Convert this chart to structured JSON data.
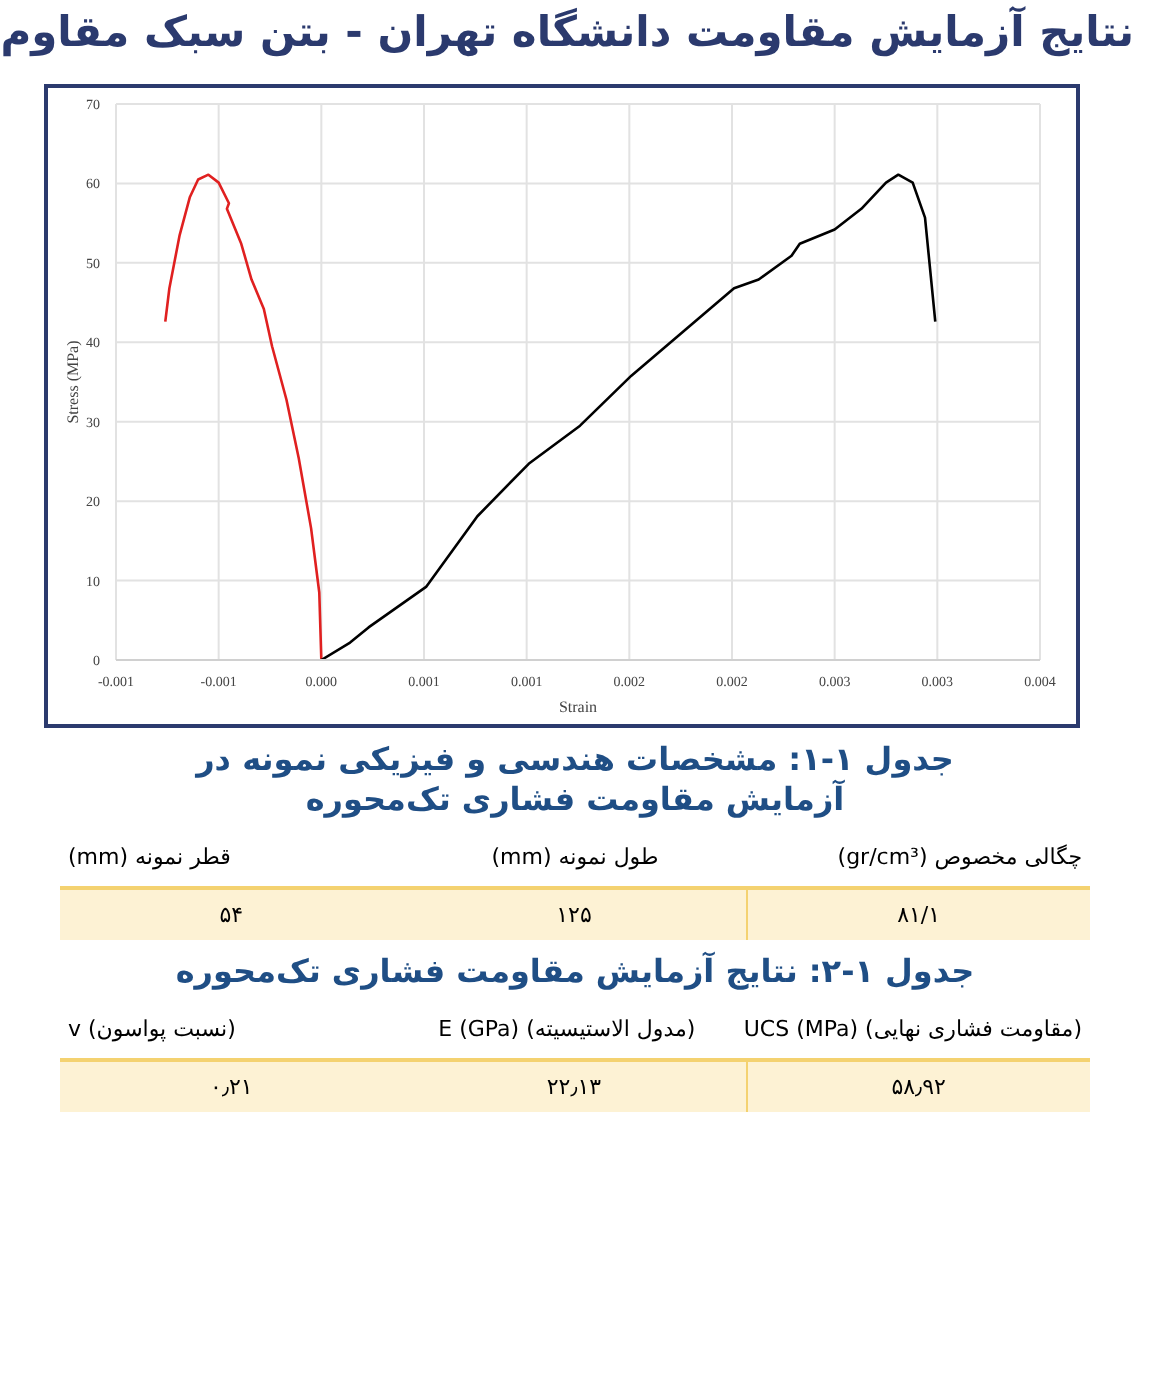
{
  "chart_data": {
    "type": "line",
    "title": "نتایج آزمایش مقاومت دانشگاه تهران - بتن سبک مقاوم",
    "xlabel": "Strain",
    "ylabel": "Stress (MPa)",
    "xlim": [
      -0.001,
      0.0035
    ],
    "xticks": [
      {
        "value": -0.001,
        "label": "-0.001"
      },
      {
        "value": -0.0005,
        "label": "-0.001"
      },
      {
        "value": 0,
        "label": "0.000"
      },
      {
        "value": 0.0005,
        "label": "0.001"
      },
      {
        "value": 0.001,
        "label": "0.001"
      },
      {
        "value": 0.0015,
        "label": "0.002"
      },
      {
        "value": 0.002,
        "label": "0.002"
      },
      {
        "value": 0.0025,
        "label": "0.003"
      },
      {
        "value": 0.003,
        "label": "0.003"
      },
      {
        "value": 0.0035,
        "label": "0.004"
      }
    ],
    "ylim": [
      0,
      70
    ],
    "yticks": [
      0,
      10,
      20,
      30,
      40,
      50,
      60,
      70
    ],
    "grid": true,
    "marker": "none",
    "line_style": "solid",
    "series": [
      {
        "color": "#e02020",
        "x": [
          -0.00076,
          -0.00074,
          -0.00069,
          -0.00064,
          -0.0006,
          -0.00055,
          -0.0005,
          -0.00045,
          -0.00046,
          -0.00039,
          -0.00034,
          -0.00028,
          -0.00024,
          -0.00017,
          -0.00011,
          -5e-05,
          -1e-05,
          0
        ],
        "values": [
          42.6,
          46.8,
          53.5,
          58.3,
          60.5,
          61.1,
          60.1,
          57.5,
          56.8,
          52.4,
          47.9,
          44.2,
          39.5,
          32.8,
          25.4,
          16.6,
          8.5,
          0
        ]
      },
      {
        "color": "#000000",
        "x": [
          0,
          0.00014,
          0.00023,
          0.00051,
          0.00076,
          0.00101,
          0.00126,
          0.00151,
          0.00176,
          0.00201,
          0.00213,
          0.00229,
          0.00233,
          0.0025,
          0.00263,
          0.00275,
          0.00281,
          0.00288,
          0.00294,
          0.00299
        ],
        "values": [
          0,
          2.2,
          4.1,
          9.2,
          18.1,
          24.7,
          29.5,
          35.8,
          41.3,
          46.8,
          47.9,
          50.9,
          52.4,
          54.2,
          56.8,
          60.1,
          61.1,
          60.1,
          55.7,
          42.6
        ]
      }
    ],
    "annotations": [
      "جدول ۱-۱: مشخصات هندسی و فیزیکی نمونه در آزمایش مقاومت فشاری تک‌محوره",
      "چگالی مخصوص (gr/cm³)",
      "طول نمونه (mm)",
      "قطر نمونه (mm)",
      "۸۱/۱",
      "۱۲۵",
      "۵۴",
      "جدول ۱-۲: نتایج آزمایش مقاومت فشاری تک‌محوره",
      "(مقاومت فشاری نهایی) UCS (MPa)",
      "(مدول الاستیسیته) E (GPa)",
      "(نسبت پواسون) v",
      "۵۸٫۹۲",
      "۲۲٫۱۳",
      "۰٫۲۱"
    ]
  }
}
